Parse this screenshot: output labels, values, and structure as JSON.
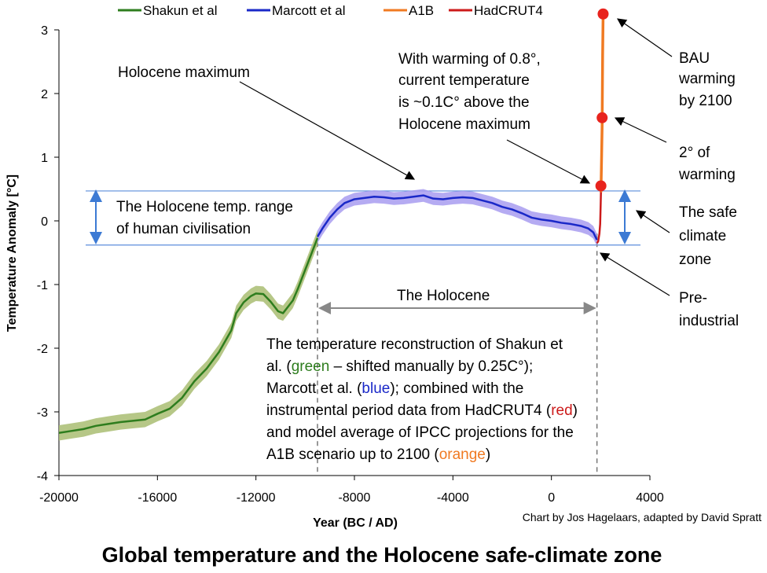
{
  "chart_data": {
    "type": "line",
    "title": "Global temperature and the Holocene safe-climate zone",
    "credit": "Chart by Jos Hagelaars, adapted by David Spratt",
    "xlabel": "Year (BC / AD)",
    "ylabel": "Temperature Anomaly [°C]",
    "xlim": [
      -20000,
      4000
    ],
    "ylim": [
      -4,
      3
    ],
    "xticks": [
      -20000,
      -16000,
      -12000,
      -8000,
      -4000,
      0,
      4000
    ],
    "yticks": [
      -4,
      -3,
      -2,
      -1,
      0,
      1,
      2,
      3
    ],
    "grid": false,
    "legend_position": "top",
    "series": [
      {
        "name": "Shakun et al",
        "color": "#2e7d1e",
        "band_color": "#a9bd72",
        "x": [
          -20000,
          -19500,
          -19000,
          -18500,
          -18000,
          -17500,
          -17000,
          -16500,
          -16000,
          -15500,
          -15000,
          -14500,
          -14000,
          -13500,
          -13000,
          -12800,
          -12500,
          -12200,
          -12000,
          -11700,
          -11400,
          -11100,
          -10900,
          -10700,
          -10500,
          -10300,
          -10100,
          -9900,
          -9700,
          -9500
        ],
        "y": [
          -3.33,
          -3.3,
          -3.27,
          -3.22,
          -3.19,
          -3.16,
          -3.14,
          -3.12,
          -3.03,
          -2.95,
          -2.78,
          -2.52,
          -2.32,
          -2.06,
          -1.72,
          -1.45,
          -1.28,
          -1.18,
          -1.14,
          -1.15,
          -1.27,
          -1.42,
          -1.45,
          -1.35,
          -1.25,
          -1.07,
          -0.87,
          -0.67,
          -0.47,
          -0.27
        ],
        "uncertainty": 0.12
      },
      {
        "name": "Marcott et al",
        "color": "#1a28c8",
        "band_color": "#a89cf0",
        "x": [
          -9500,
          -9300,
          -9000,
          -8700,
          -8400,
          -8000,
          -7600,
          -7200,
          -6800,
          -6400,
          -6000,
          -5600,
          -5200,
          -4800,
          -4400,
          -4000,
          -3600,
          -3200,
          -2800,
          -2400,
          -2000,
          -1600,
          -1200,
          -800,
          -400,
          0,
          400,
          800,
          1200,
          1500,
          1700,
          1850
        ],
        "y": [
          -0.25,
          -0.12,
          0.05,
          0.18,
          0.28,
          0.34,
          0.36,
          0.38,
          0.37,
          0.35,
          0.36,
          0.38,
          0.4,
          0.35,
          0.34,
          0.36,
          0.37,
          0.36,
          0.32,
          0.28,
          0.22,
          0.18,
          0.12,
          0.05,
          0.02,
          0.0,
          -0.03,
          -0.05,
          -0.08,
          -0.12,
          -0.18,
          -0.3
        ],
        "uncertainty": 0.1
      },
      {
        "name": "HadCRUT4",
        "color": "#cc1a1a",
        "x": [
          1850,
          1900,
          1950,
          1980,
          2000,
          2012
        ],
        "y": [
          -0.35,
          -0.32,
          -0.2,
          -0.05,
          0.25,
          0.45
        ]
      },
      {
        "name": "A1B",
        "color": "#f07a22",
        "x": [
          2012,
          2040,
          2060,
          2080,
          2100
        ],
        "y": [
          0.45,
          1.05,
          1.5,
          2.6,
          3.25
        ]
      }
    ],
    "markers": [
      {
        "x": 2010,
        "y": 0.55,
        "color": "#e8231d"
      },
      {
        "x": 2060,
        "y": 1.62,
        "color": "#e8231d"
      },
      {
        "x": 2100,
        "y": 3.25,
        "color": "#e8231d"
      }
    ],
    "safe_zone": {
      "upper": 0.47,
      "lower": -0.38,
      "line_color": "#5b8edb"
    },
    "holocene_span": {
      "from": -9500,
      "to": 1850
    },
    "annotations": {
      "holocene_max": "Holocene maximum",
      "warming_1": "With warming of 0.8°,",
      "warming_2": "current temperature",
      "warming_3": "is ~0.1C° above the",
      "warming_4": "Holocene maximum",
      "range_1": "The Holocene temp. range",
      "range_2": "of human civilisation",
      "holocene": "The Holocene",
      "bau_1": "BAU",
      "bau_2": "warming",
      "bau_3": "by 2100",
      "two_1": "2° of",
      "two_2": "warming",
      "safe_1": "The safe",
      "safe_2": "climate",
      "safe_3": "zone",
      "pre_1": "Pre-",
      "pre_2": "industrial",
      "caption": {
        "l1": "The temperature reconstruction of Shakun et",
        "l2a": "al. (",
        "l2b": "green",
        "l2c": " – shifted manually by 0.25C°);",
        "l3a": "Marcott et al. (",
        "l3b": "blue",
        "l3c": "); combined with the",
        "l4a": "instrumental period data from HadCRUT4 (",
        "l4b": "red",
        "l4c": ")",
        "l5": "and model average of IPCC projections for the",
        "l6a": "A1B scenario up to 2100 (",
        "l6b": "orange",
        "l6c": ")"
      },
      "caption_colors": {
        "green": "#2e7d1e",
        "blue": "#1a28c8",
        "red": "#cc1a1a",
        "orange": "#f07a22"
      }
    }
  }
}
